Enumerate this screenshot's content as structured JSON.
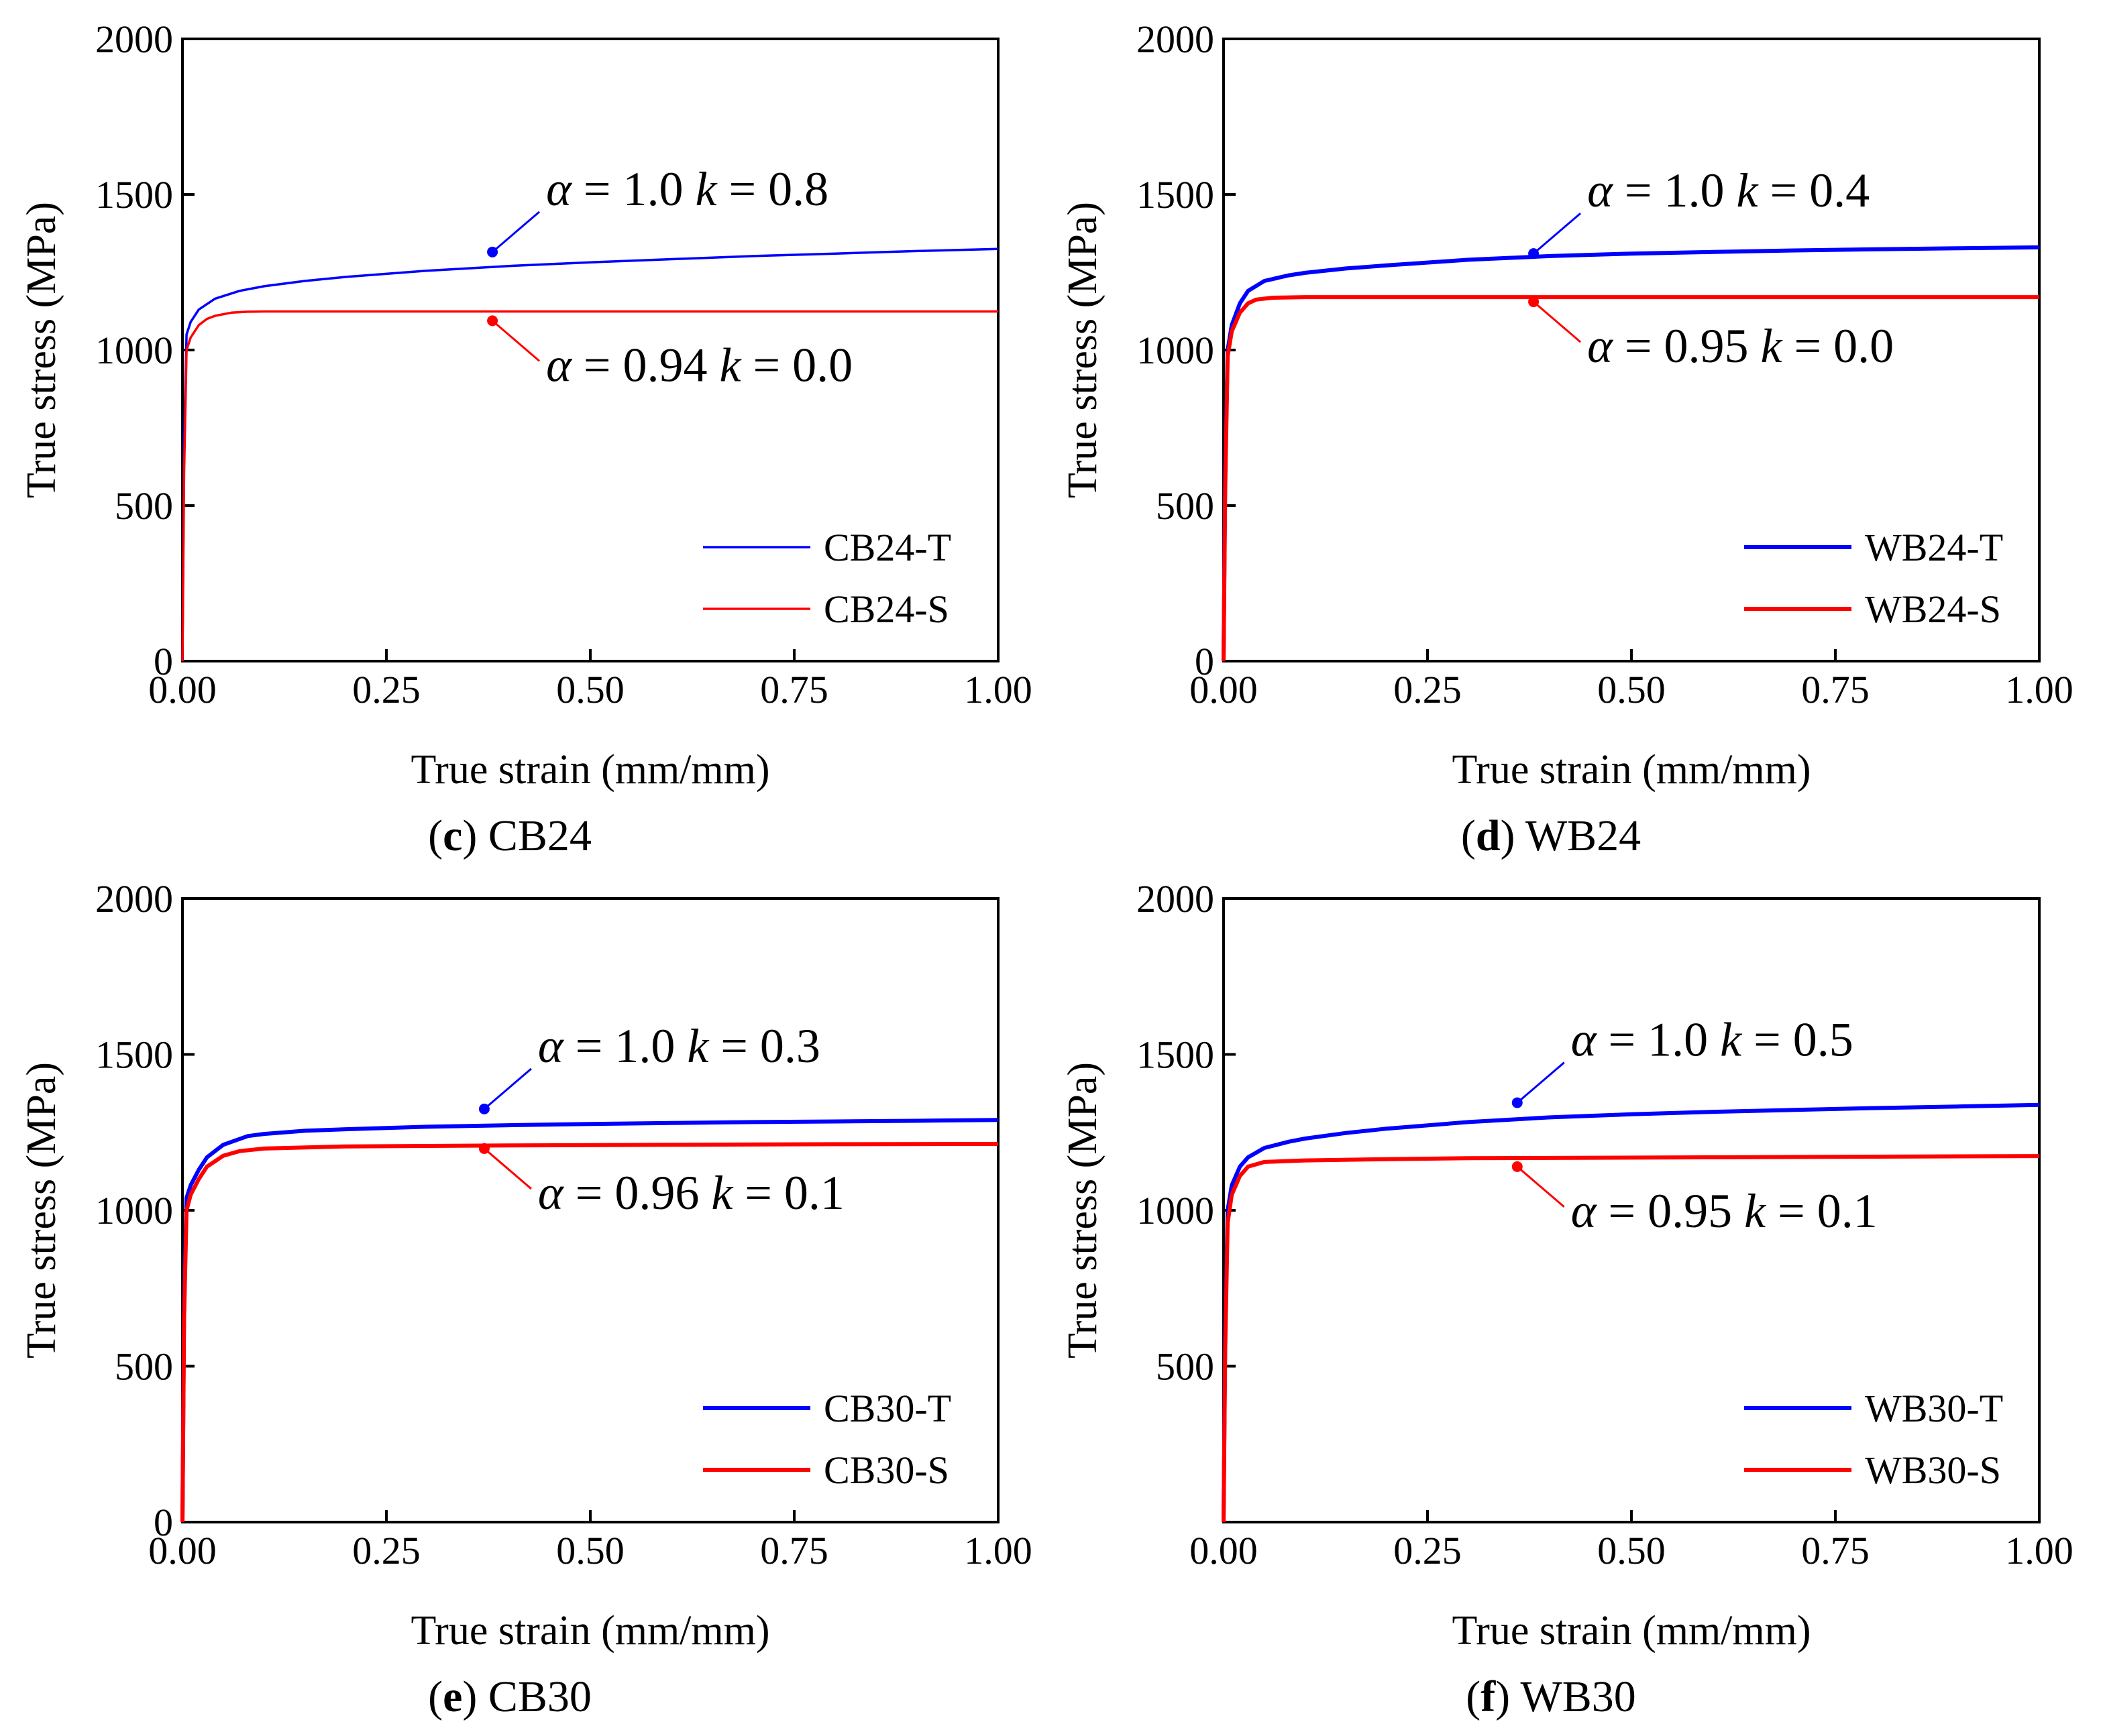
{
  "chart_data": [
    {
      "type": "line",
      "panel": "c",
      "caption": {
        "letter": "c",
        "text": "CB24"
      },
      "xlabel": "True strain (mm/mm)",
      "ylabel": "True stress (MPa)",
      "xlim": [
        0,
        1.0
      ],
      "ylim": [
        0,
        2000
      ],
      "xticks": [
        "0.00",
        "0.25",
        "0.50",
        "0.75",
        "1.00"
      ],
      "yticks": [
        "0",
        "500",
        "1000",
        "1500",
        "2000"
      ],
      "legend_position": "bottom-right",
      "series": [
        {
          "name": "CB24-T",
          "color": "#0000ff",
          "thick": false,
          "x": [
            0,
            0.002,
            0.005,
            0.01,
            0.02,
            0.04,
            0.07,
            0.1,
            0.15,
            0.2,
            0.3,
            0.4,
            0.5,
            0.6,
            0.7,
            0.8,
            0.9,
            1.0
          ],
          "y": [
            0,
            700,
            1050,
            1090,
            1130,
            1165,
            1190,
            1205,
            1222,
            1235,
            1255,
            1270,
            1282,
            1292,
            1302,
            1310,
            1318,
            1325
          ]
        },
        {
          "name": "CB24-S",
          "color": "#ff0000",
          "thick": false,
          "x": [
            0,
            0.002,
            0.005,
            0.01,
            0.02,
            0.03,
            0.04,
            0.06,
            0.08,
            0.1,
            0.2,
            0.4,
            0.6,
            0.8,
            1.0
          ],
          "y": [
            0,
            600,
            1000,
            1040,
            1080,
            1100,
            1110,
            1120,
            1123,
            1124,
            1124,
            1124,
            1124,
            1124,
            1124
          ]
        }
      ],
      "annotations": [
        {
          "series": 0,
          "alpha": "1.0",
          "k": "0.8",
          "point": [
            0.38,
            1315
          ],
          "side": "above"
        },
        {
          "series": 1,
          "alpha": "0.94",
          "k": "0.0",
          "point": [
            0.38,
            1094
          ],
          "side": "below"
        }
      ]
    },
    {
      "type": "line",
      "panel": "d",
      "caption": {
        "letter": "d",
        "text": "WB24"
      },
      "xlabel": "True strain (mm/mm)",
      "ylabel": "True stress (MPa)",
      "xlim": [
        0,
        1.0
      ],
      "ylim": [
        0,
        2000
      ],
      "xticks": [
        "0.00",
        "0.25",
        "0.50",
        "0.75",
        "1.00"
      ],
      "yticks": [
        "0",
        "500",
        "1000",
        "1500",
        "2000"
      ],
      "legend_position": "bottom-right",
      "series": [
        {
          "name": "WB24-T",
          "color": "#0000ff",
          "thick": true,
          "x": [
            0,
            0.002,
            0.005,
            0.01,
            0.02,
            0.03,
            0.05,
            0.08,
            0.1,
            0.15,
            0.2,
            0.3,
            0.4,
            0.5,
            0.6,
            0.7,
            0.8,
            0.9,
            1.0
          ],
          "y": [
            0,
            600,
            1000,
            1080,
            1150,
            1190,
            1222,
            1240,
            1248,
            1262,
            1272,
            1290,
            1302,
            1310,
            1315,
            1320,
            1324,
            1327,
            1330
          ]
        },
        {
          "name": "WB24-S",
          "color": "#ff0000",
          "thick": true,
          "x": [
            0,
            0.002,
            0.005,
            0.01,
            0.02,
            0.03,
            0.04,
            0.06,
            0.1,
            0.2,
            0.4,
            0.6,
            0.8,
            1.0
          ],
          "y": [
            0,
            550,
            980,
            1060,
            1120,
            1150,
            1162,
            1168,
            1170,
            1170,
            1170,
            1170,
            1170,
            1170
          ]
        }
      ],
      "annotations": [
        {
          "series": 0,
          "alpha": "1.0",
          "k": "0.4",
          "point": [
            0.38,
            1310
          ],
          "side": "above"
        },
        {
          "series": 1,
          "alpha": "0.95",
          "k": "0.0",
          "point": [
            0.38,
            1155
          ],
          "side": "below"
        }
      ]
    },
    {
      "type": "line",
      "panel": "e",
      "caption": {
        "letter": "e",
        "text": "CB30"
      },
      "xlabel": "True strain (mm/mm)",
      "ylabel": "True stress (MPa)",
      "xlim": [
        0,
        1.0
      ],
      "ylim": [
        0,
        2000
      ],
      "xticks": [
        "0.00",
        "0.25",
        "0.50",
        "0.75",
        "1.00"
      ],
      "yticks": [
        "0",
        "500",
        "1000",
        "1500",
        "2000"
      ],
      "legend_position": "bottom-right",
      "series": [
        {
          "name": "CB30-T",
          "color": "#0000ff",
          "thick": true,
          "x": [
            0,
            0.002,
            0.005,
            0.01,
            0.02,
            0.03,
            0.05,
            0.08,
            0.1,
            0.15,
            0.2,
            0.3,
            0.4,
            0.5,
            0.6,
            0.7,
            0.8,
            0.9,
            1.0
          ],
          "y": [
            0,
            700,
            1040,
            1080,
            1130,
            1170,
            1210,
            1238,
            1245,
            1255,
            1260,
            1268,
            1273,
            1277,
            1280,
            1283,
            1285,
            1287,
            1290
          ]
        },
        {
          "name": "CB30-S",
          "color": "#ff0000",
          "thick": true,
          "x": [
            0,
            0.002,
            0.005,
            0.01,
            0.02,
            0.03,
            0.05,
            0.07,
            0.1,
            0.2,
            0.4,
            0.6,
            0.8,
            1.0
          ],
          "y": [
            0,
            650,
            1000,
            1050,
            1100,
            1140,
            1175,
            1190,
            1198,
            1205,
            1208,
            1210,
            1212,
            1213
          ]
        }
      ],
      "annotations": [
        {
          "series": 0,
          "alpha": "1.0",
          "k": "0.3",
          "point": [
            0.37,
            1325
          ],
          "side": "above"
        },
        {
          "series": 1,
          "alpha": "0.96",
          "k": "0.1",
          "point": [
            0.37,
            1198
          ],
          "side": "below"
        }
      ]
    },
    {
      "type": "line",
      "panel": "f",
      "caption": {
        "letter": "f",
        "text": "WB30"
      },
      "xlabel": "True strain (mm/mm)",
      "ylabel": "True stress (MPa)",
      "xlim": [
        0,
        1.0
      ],
      "ylim": [
        0,
        2000
      ],
      "xticks": [
        "0.00",
        "0.25",
        "0.50",
        "0.75",
        "1.00"
      ],
      "yticks": [
        "",
        "500",
        "1000",
        "1500",
        "2000"
      ],
      "legend_position": "bottom-right",
      "series": [
        {
          "name": "WB30-T",
          "color": "#0000ff",
          "thick": true,
          "x": [
            0,
            0.002,
            0.005,
            0.01,
            0.02,
            0.03,
            0.05,
            0.08,
            0.1,
            0.15,
            0.2,
            0.3,
            0.4,
            0.5,
            0.6,
            0.7,
            0.8,
            0.9,
            1.0
          ],
          "y": [
            0,
            600,
            1000,
            1080,
            1140,
            1170,
            1200,
            1220,
            1230,
            1248,
            1262,
            1283,
            1298,
            1308,
            1316,
            1322,
            1328,
            1333,
            1338
          ]
        },
        {
          "name": "WB30-S",
          "color": "#ff0000",
          "thick": true,
          "x": [
            0,
            0.002,
            0.005,
            0.01,
            0.02,
            0.03,
            0.05,
            0.1,
            0.2,
            0.3,
            0.4,
            0.6,
            0.8,
            1.0
          ],
          "y": [
            0,
            550,
            960,
            1050,
            1110,
            1140,
            1155,
            1160,
            1164,
            1167,
            1168,
            1170,
            1172,
            1174
          ]
        }
      ],
      "annotations": [
        {
          "series": 0,
          "alpha": "1.0",
          "k": "0.5",
          "point": [
            0.36,
            1345
          ],
          "side": "above"
        },
        {
          "series": 1,
          "alpha": "0.95",
          "k": "0.1",
          "point": [
            0.36,
            1140
          ],
          "side": "below"
        }
      ]
    }
  ]
}
